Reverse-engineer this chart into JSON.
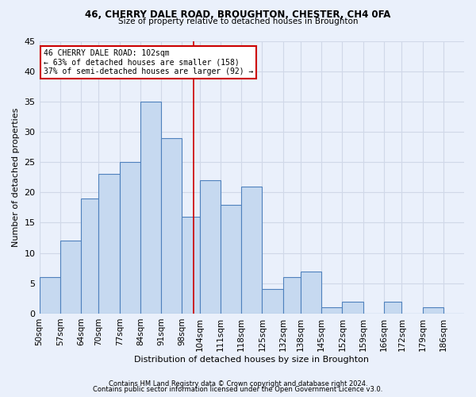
{
  "title1": "46, CHERRY DALE ROAD, BROUGHTON, CHESTER, CH4 0FA",
  "title2": "Size of property relative to detached houses in Broughton",
  "xlabel": "Distribution of detached houses by size in Broughton",
  "ylabel": "Number of detached properties",
  "bin_labels": [
    "50sqm",
    "57sqm",
    "64sqm",
    "70sqm",
    "77sqm",
    "84sqm",
    "91sqm",
    "98sqm",
    "104sqm",
    "111sqm",
    "118sqm",
    "125sqm",
    "132sqm",
    "138sqm",
    "145sqm",
    "152sqm",
    "159sqm",
    "166sqm",
    "172sqm",
    "179sqm",
    "186sqm"
  ],
  "bar_heights": [
    6,
    12,
    19,
    23,
    25,
    35,
    29,
    16,
    22,
    18,
    21,
    4,
    6,
    7,
    1,
    2,
    0,
    2,
    0,
    1,
    0
  ],
  "bar_color": "#c6d9f0",
  "bar_edge_color": "#4f81bd",
  "vline_x": 102,
  "bin_edges": [
    50,
    57,
    64,
    70,
    77,
    84,
    91,
    98,
    104,
    111,
    118,
    125,
    132,
    138,
    145,
    152,
    159,
    166,
    172,
    179,
    186,
    193
  ],
  "annotation_line1": "46 CHERRY DALE ROAD: 102sqm",
  "annotation_line2": "← 63% of detached houses are smaller (158)",
  "annotation_line3": "37% of semi-detached houses are larger (92) →",
  "annotation_box_color": "#ffffff",
  "annotation_edge_color": "#cc0000",
  "vline_color": "#cc0000",
  "grid_color": "#d0d8e8",
  "background_color": "#eaf0fb",
  "footer1": "Contains HM Land Registry data © Crown copyright and database right 2024.",
  "footer2": "Contains public sector information licensed under the Open Government Licence v3.0.",
  "ylim": [
    0,
    45
  ],
  "yticks": [
    0,
    5,
    10,
    15,
    20,
    25,
    30,
    35,
    40,
    45
  ]
}
